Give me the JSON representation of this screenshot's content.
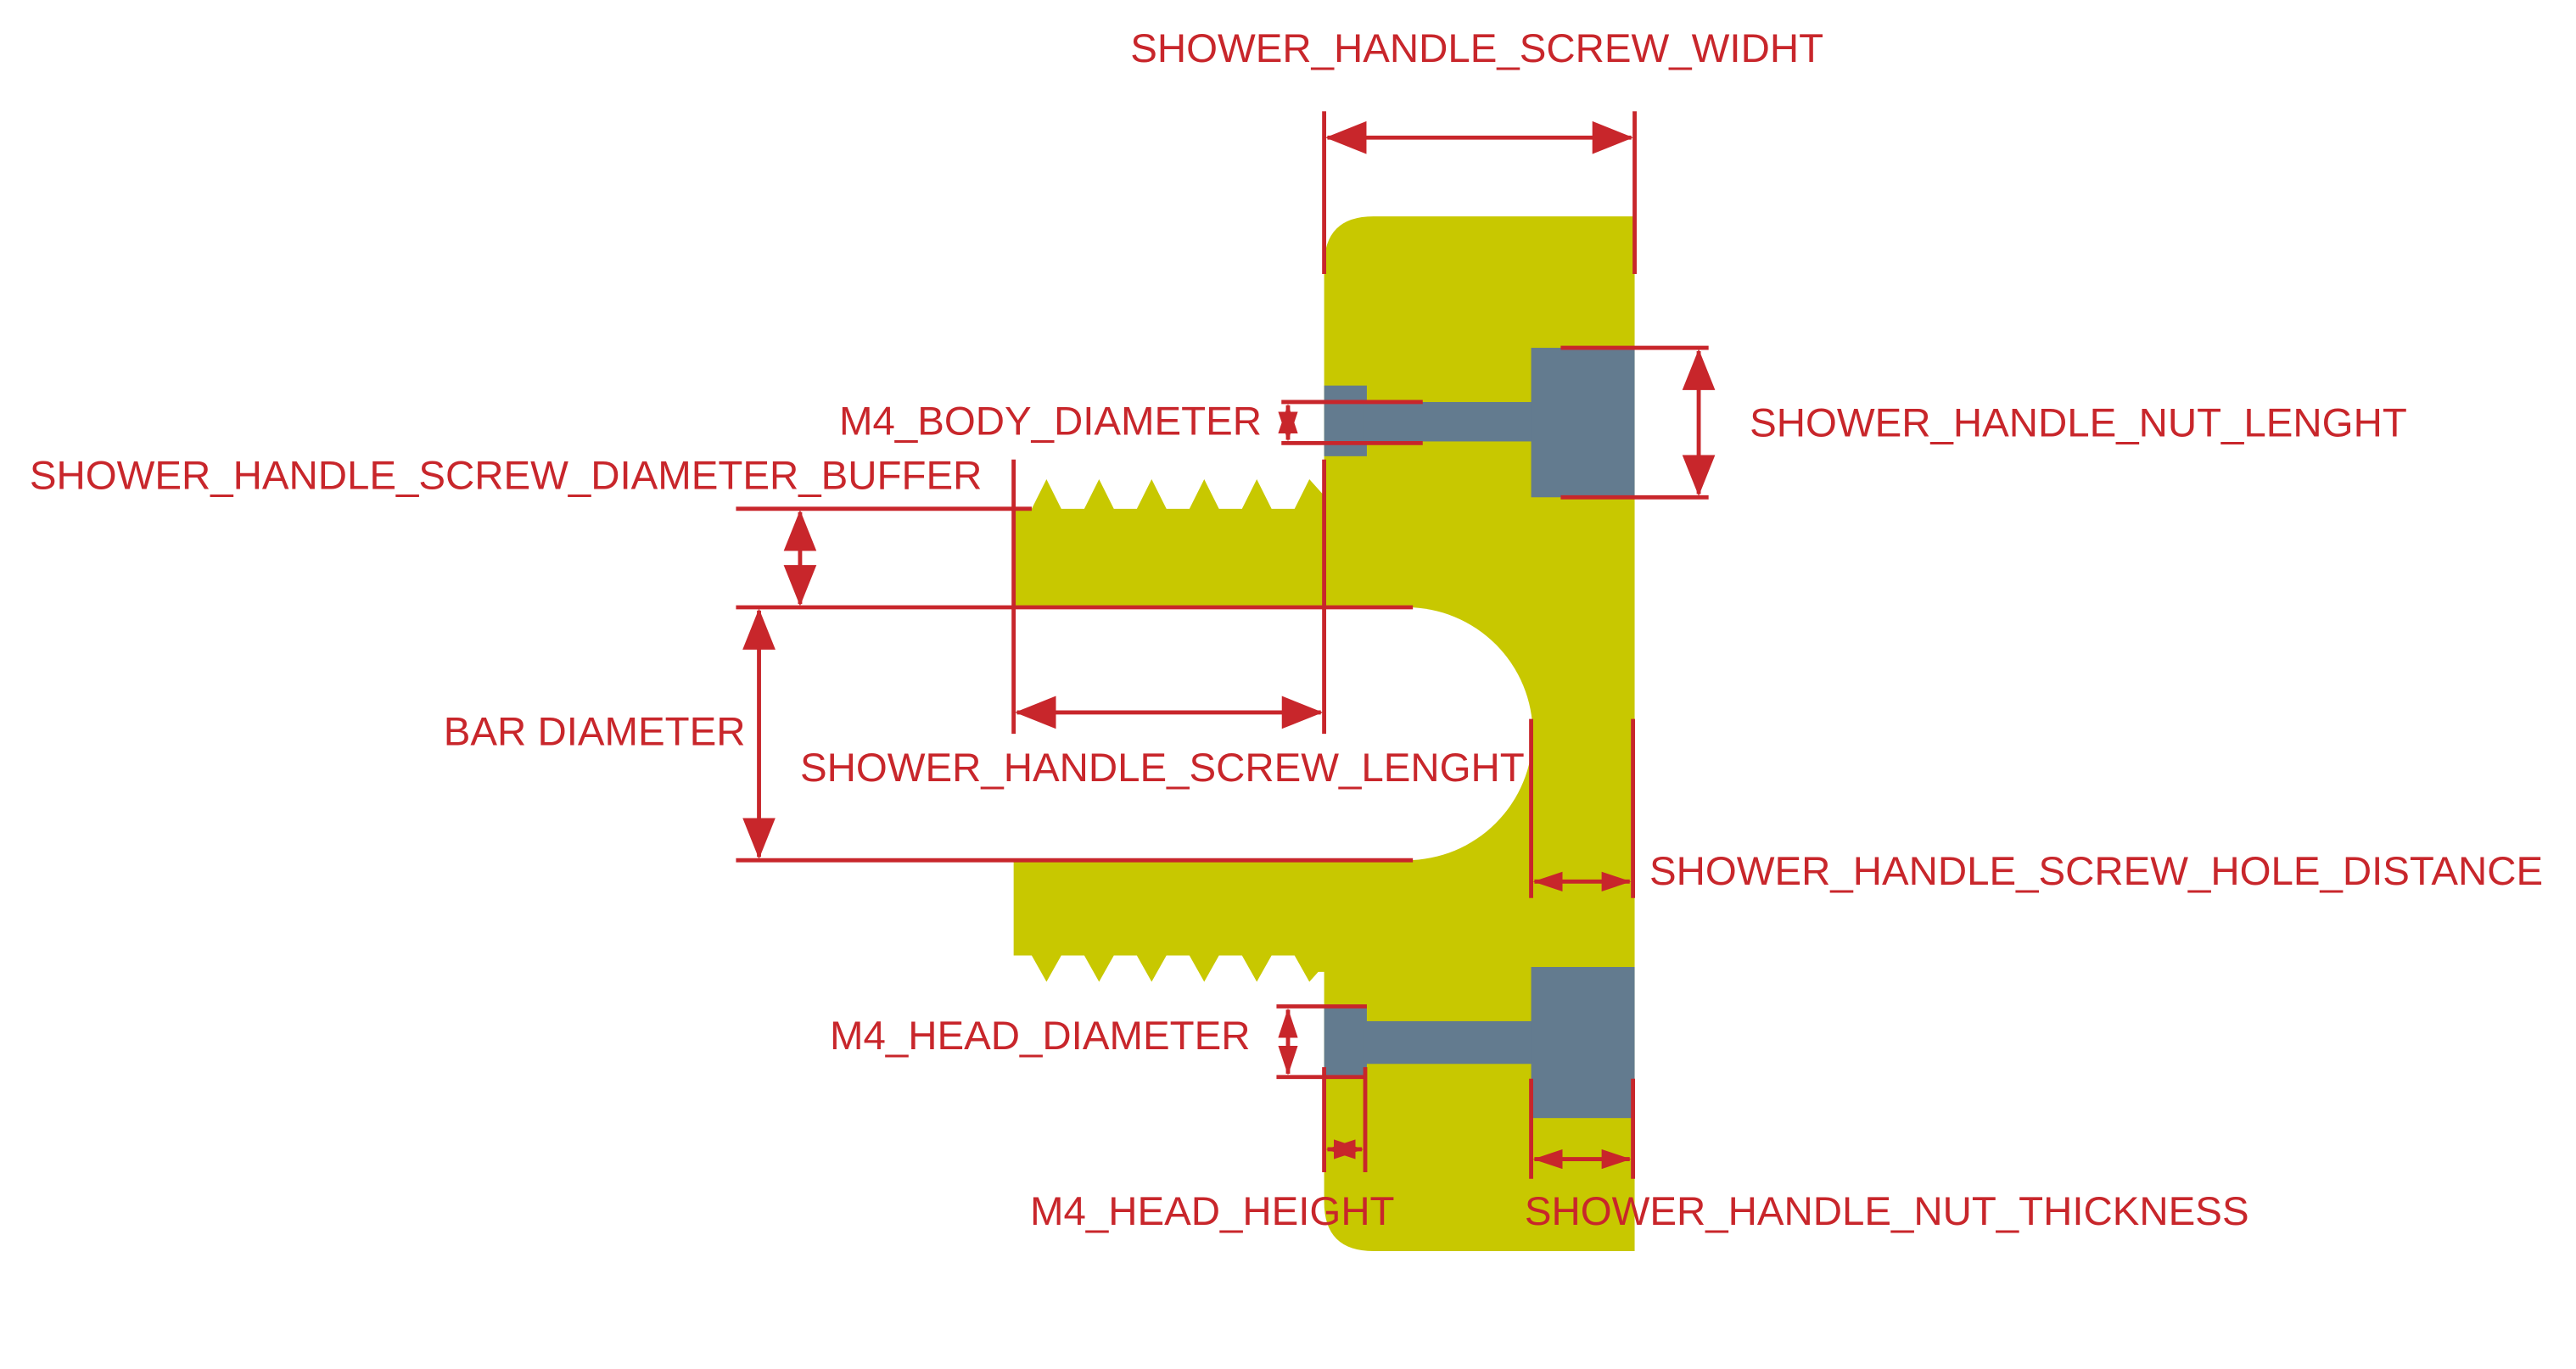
{
  "colors": {
    "part_fill": "#c8c800",
    "hardware_fill": "#637b8f",
    "dimension": "#c8262b",
    "background": "#ffffff"
  },
  "labels": {
    "screw_width": "SHOWER_HANDLE_SCREW_WIDHT",
    "nut_length": "SHOWER_HANDLE_NUT_LENGHT",
    "m4_body_diameter": "M4_BODY_DIAMETER",
    "screw_diameter_buffer": "SHOWER_HANDLE_SCREW_DIAMETER_BUFFER",
    "bar_diameter": "BAR DIAMETER",
    "screw_length": "SHOWER_HANDLE_SCREW_LENGHT",
    "screw_hole_distance": "SHOWER_HANDLE_SCREW_HOLE_DISTANCE",
    "m4_head_diameter": "M4_HEAD_DIAMETER",
    "m4_head_height": "M4_HEAD_HEIGHT",
    "nut_thickness": "SHOWER_HANDLE_NUT_THICKNESS"
  }
}
